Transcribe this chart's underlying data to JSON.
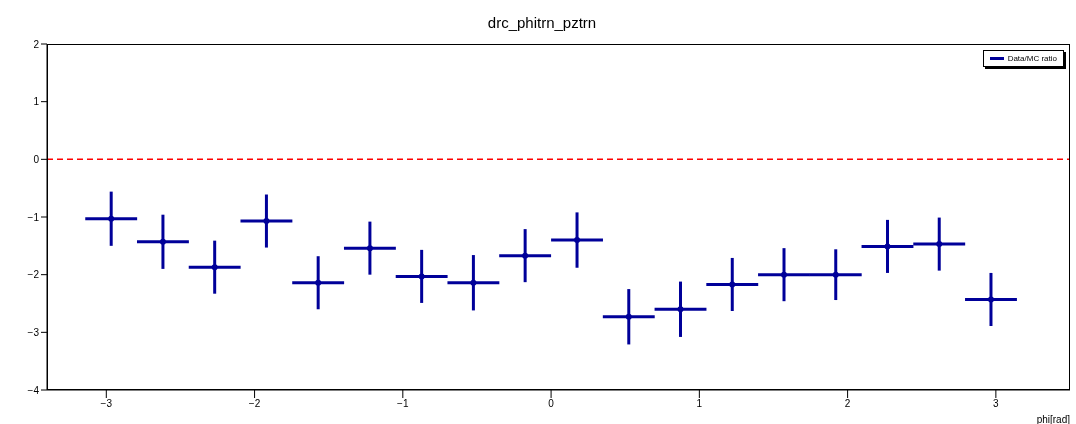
{
  "chart_data": {
    "type": "scatter",
    "title": "drc_phitrn_pztrn",
    "xlabel": "phi[rad]",
    "x": [
      -2.967,
      -2.618,
      -2.269,
      -1.92,
      -1.571,
      -1.222,
      -0.873,
      -0.524,
      -0.175,
      0.175,
      0.524,
      0.873,
      1.222,
      1.571,
      1.92,
      2.269,
      2.618,
      2.967
    ],
    "series": [
      {
        "name": "Data/MC ratio",
        "color": "#000099",
        "values": [
          -1.03,
          -1.43,
          -1.87,
          -1.07,
          -2.14,
          -1.54,
          -2.03,
          -2.14,
          -1.67,
          -1.4,
          -2.73,
          -2.6,
          -2.17,
          -2.0,
          -2.0,
          -1.51,
          -1.47,
          -2.43
        ],
        "errors": [
          0.47,
          0.47,
          0.46,
          0.46,
          0.46,
          0.46,
          0.46,
          0.48,
          0.46,
          0.48,
          0.48,
          0.48,
          0.46,
          0.46,
          0.44,
          0.46,
          0.46,
          0.46
        ],
        "xerrors": [
          0.175,
          0.175,
          0.175,
          0.175,
          0.175,
          0.175,
          0.175,
          0.175,
          0.175,
          0.175,
          0.175,
          0.175,
          0.175,
          0.175,
          0.175,
          0.175,
          0.175,
          0.175
        ]
      }
    ],
    "xlim": [
      -3.4,
      3.5
    ],
    "xticks": [
      -3,
      -2,
      -1,
      0,
      1,
      2,
      3
    ],
    "ylim": [
      -4,
      2
    ],
    "yticks": [
      -4,
      -3,
      -2,
      -1,
      0,
      1,
      2
    ],
    "ref_lines": [
      {
        "axis": "y",
        "value": 0,
        "color": "#ff0000",
        "line_style": "dashed"
      }
    ],
    "legend": "top right",
    "grid": false
  }
}
